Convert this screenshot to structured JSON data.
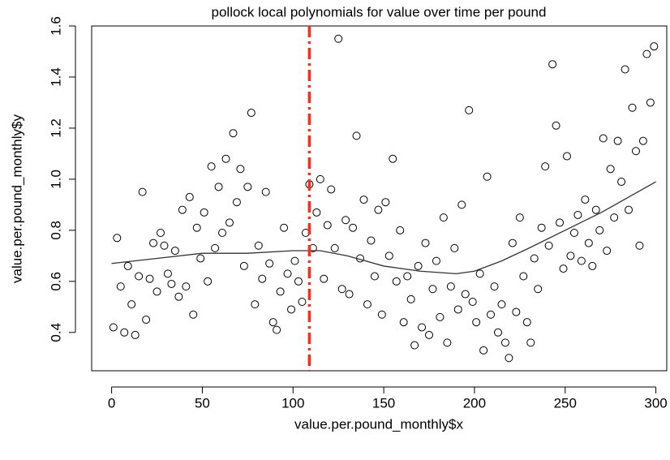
{
  "chart_data": {
    "type": "scatter",
    "title": "pollock local polynomials for value over time per pound",
    "x_label": "value.per.pound_monthly$x",
    "y_label": "value.per.pound_monthly$y",
    "xlim": [
      -11,
      306
    ],
    "ylim": [
      0.25,
      1.6
    ],
    "xticks": [
      0,
      50,
      100,
      150,
      200,
      250,
      300
    ],
    "yticks": [
      0.4,
      0.6,
      0.8,
      {
        "value": 1,
        "label": "1.0"
      },
      1.2,
      1.4,
      1.6
    ],
    "vline": {
      "x": 109,
      "color": "#ff2a1a"
    },
    "series": [
      {
        "mode": "points",
        "color": "#000000",
        "x": [
          1,
          3,
          5,
          7,
          9,
          11,
          13,
          15,
          17,
          19,
          21,
          23,
          25,
          27,
          29,
          31,
          33,
          35,
          37,
          39,
          41,
          43,
          45,
          47,
          49,
          51,
          53,
          55,
          57,
          59,
          61,
          63,
          65,
          67,
          69,
          71,
          73,
          75,
          77,
          79,
          81,
          83,
          85,
          87,
          89,
          91,
          93,
          95,
          97,
          99,
          101,
          103,
          105,
          107,
          109,
          111,
          113,
          115,
          117,
          119,
          121,
          123,
          125,
          127,
          129,
          131,
          133,
          135,
          137,
          139,
          141,
          143,
          145,
          147,
          149,
          151,
          153,
          155,
          157,
          159,
          161,
          163,
          165,
          167,
          169,
          171,
          173,
          175,
          177,
          179,
          181,
          183,
          185,
          187,
          189,
          191,
          193,
          195,
          197,
          199,
          201,
          203,
          205,
          207,
          209,
          211,
          213,
          215,
          217,
          219,
          221,
          223,
          225,
          227,
          229,
          231,
          233,
          235,
          237,
          239,
          241,
          243,
          245,
          247,
          249,
          251,
          253,
          255,
          257,
          259,
          261,
          263,
          265,
          267,
          269,
          271,
          273,
          275,
          277,
          279,
          281,
          283,
          285,
          287,
          289,
          291,
          293,
          295,
          297,
          299
        ],
        "values": [
          0.42,
          0.77,
          0.58,
          0.4,
          0.66,
          0.51,
          0.39,
          0.62,
          0.95,
          0.45,
          0.61,
          0.75,
          0.56,
          0.79,
          0.74,
          0.63,
          0.59,
          0.72,
          0.54,
          0.88,
          0.58,
          0.93,
          0.47,
          0.81,
          0.69,
          0.87,
          0.6,
          1.05,
          0.73,
          0.97,
          0.79,
          1.08,
          0.83,
          1.18,
          0.91,
          1.04,
          0.66,
          0.97,
          1.26,
          0.51,
          0.74,
          0.61,
          0.95,
          0.67,
          0.44,
          0.41,
          0.56,
          0.81,
          0.63,
          0.49,
          0.68,
          0.6,
          0.52,
          0.79,
          0.98,
          0.73,
          0.87,
          1.0,
          0.61,
          0.82,
          0.96,
          0.73,
          1.55,
          0.57,
          0.84,
          0.55,
          0.81,
          1.17,
          0.69,
          0.92,
          0.51,
          0.76,
          0.62,
          0.88,
          0.47,
          0.91,
          0.7,
          1.08,
          0.6,
          0.8,
          0.44,
          0.62,
          0.53,
          0.35,
          0.66,
          0.42,
          0.75,
          0.39,
          0.57,
          0.68,
          0.46,
          0.85,
          0.36,
          0.58,
          0.73,
          0.49,
          0.9,
          0.55,
          1.27,
          0.52,
          0.44,
          0.63,
          0.33,
          1.01,
          0.47,
          0.58,
          0.4,
          0.51,
          0.36,
          0.3,
          0.75,
          0.48,
          0.85,
          0.62,
          0.44,
          0.36,
          0.69,
          0.57,
          0.81,
          1.05,
          0.74,
          1.45,
          1.21,
          0.83,
          0.65,
          1.09,
          0.7,
          0.79,
          0.86,
          0.68,
          0.92,
          0.75,
          0.66,
          0.88,
          0.8,
          1.16,
          0.72,
          1.04,
          0.85,
          1.15,
          0.99,
          1.43,
          0.88,
          1.28,
          1.11,
          0.74,
          1.15,
          1.49,
          1.3,
          1.52
        ]
      },
      {
        "mode": "line",
        "color": "#333333",
        "x": [
          0,
          25,
          50,
          75,
          100,
          115,
          130,
          150,
          170,
          190,
          200,
          215,
          230,
          250,
          270,
          285,
          300
        ],
        "values": [
          0.67,
          0.69,
          0.71,
          0.71,
          0.72,
          0.72,
          0.7,
          0.66,
          0.64,
          0.63,
          0.64,
          0.68,
          0.73,
          0.8,
          0.87,
          0.93,
          0.99
        ]
      }
    ]
  }
}
